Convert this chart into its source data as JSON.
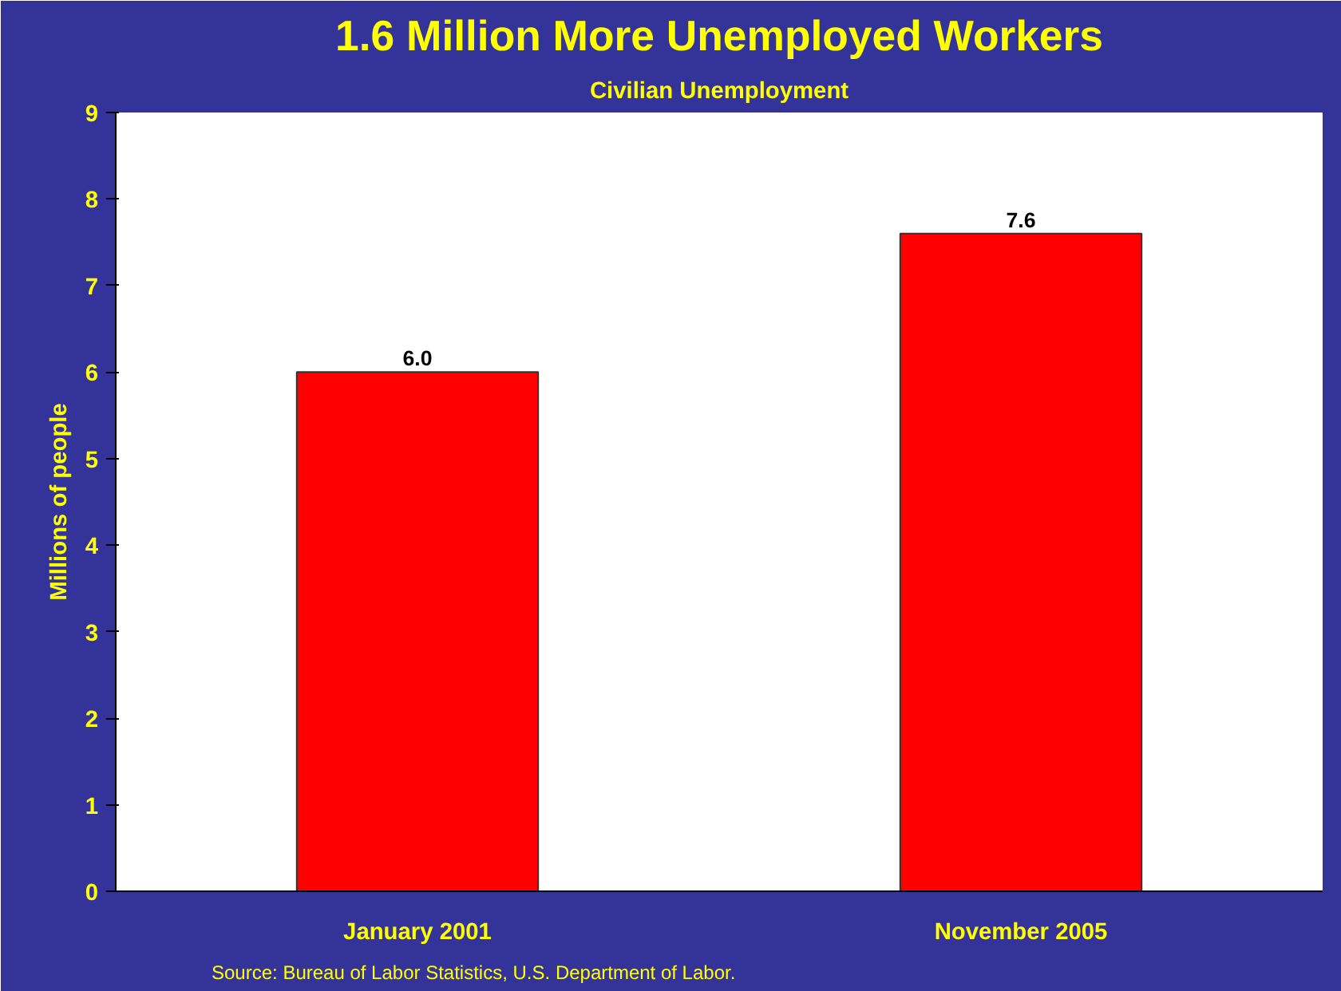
{
  "chart_data": {
    "type": "bar",
    "title": "1.6 Million More Unemployed Workers",
    "subtitle": "Civilian Unemployment",
    "ylabel": "Millions of people",
    "categories": [
      "January 2001",
      "November 2005"
    ],
    "values": [
      6.0,
      7.6
    ],
    "color": "#ff0000",
    "ylim": [
      0,
      9
    ],
    "yticks": [
      0,
      1,
      2,
      3,
      4,
      5,
      6,
      7,
      8,
      9
    ],
    "grid": false,
    "value_labels": [
      "6.0",
      "7.6"
    ],
    "annotations": [
      "Source:  Bureau of Labor Statistics, U.S. Department of Labor."
    ]
  }
}
